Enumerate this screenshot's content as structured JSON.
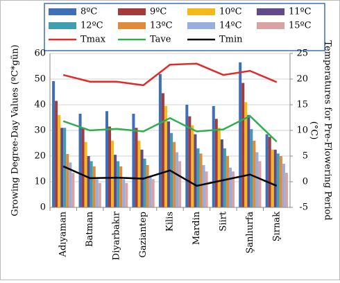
{
  "chart_data": {
    "type": "bar-line",
    "ylabel": "Growing Degree-Day Values (ºC*gün)",
    "y2label": [
      "Temperatures for Pre-Flowering Period",
      "(°C)"
    ],
    "categories": [
      "Adıyaman",
      "Batman",
      "Diyarbakır",
      "Gaziantep",
      "Kilis",
      "Mardin",
      "Siirt",
      "Şanlıurfa",
      "Şırnak"
    ],
    "series": [
      {
        "name": "8ºC",
        "color": "#3f6fb6",
        "values": [
          49.2,
          36.5,
          37.5,
          36.5,
          52,
          40,
          39.5,
          56.5,
          28.5
        ]
      },
      {
        "name": "9ºC",
        "color": "#a33b3b",
        "values": [
          41.5,
          31,
          31.5,
          31,
          44.5,
          35.5,
          34.5,
          48.5,
          27.5
        ]
      },
      {
        "name": "10ºC",
        "color": "#f6b91c",
        "values": [
          36,
          25.5,
          26,
          26,
          39.5,
          32,
          31,
          41,
          22.5
        ]
      },
      {
        "name": "11ºC",
        "color": "#604a8b",
        "values": [
          31,
          20,
          20.5,
          22.5,
          33.5,
          28.5,
          26.5,
          36,
          22.5
        ]
      },
      {
        "name": "12ºC",
        "color": "#3f9fb0",
        "values": [
          31,
          18,
          18,
          19,
          29,
          23,
          23,
          30.5,
          21
        ]
      },
      {
        "name": "13ºC",
        "color": "#e08a3a",
        "values": [
          20.8,
          16,
          16,
          16.5,
          25.5,
          21,
          20,
          26,
          20
        ]
      },
      {
        "name": "14ºC",
        "color": "#97aedf",
        "values": [
          17.5,
          11,
          11,
          12,
          21.5,
          16.5,
          15.5,
          21.5,
          17
        ]
      },
      {
        "name": "15ºC",
        "color": "#d9a3a3",
        "values": [
          13.5,
          9.5,
          9.5,
          11,
          18,
          14,
          14,
          18,
          13.5
        ]
      },
      {
        "name": "Tmax",
        "color": "#e02b2b",
        "axis": "y2",
        "line": true,
        "values": [
          20.8,
          19.5,
          19.5,
          18.8,
          22.8,
          23,
          20.8,
          21.6,
          19.4
        ]
      },
      {
        "name": "Tave",
        "color": "#2fae4f",
        "axis": "y2",
        "line": true,
        "values": [
          11.8,
          10,
          10.3,
          9.8,
          12.4,
          9.8,
          10.2,
          12.8,
          7.8
        ]
      },
      {
        "name": "Tmin",
        "color": "#000000",
        "axis": "y2",
        "line": true,
        "values": [
          3,
          0.7,
          0.8,
          0.6,
          2.2,
          -0.8,
          0.3,
          1.4,
          -0.8
        ]
      }
    ],
    "ylim": [
      0,
      60
    ],
    "yticks": [
      0,
      10,
      20,
      30,
      40,
      50,
      60
    ],
    "y2lim": [
      -5,
      25
    ],
    "y2ticks": [
      -5,
      0,
      5,
      10,
      15,
      20,
      25
    ],
    "grid": true
  }
}
